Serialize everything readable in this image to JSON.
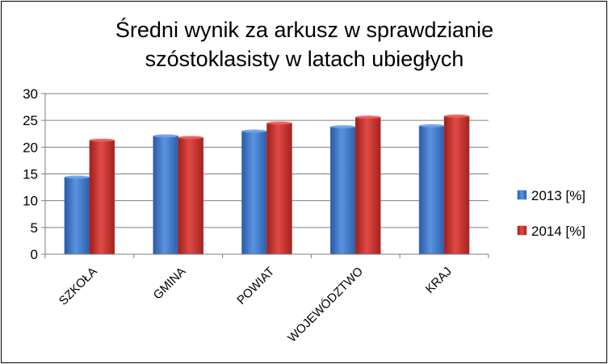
{
  "chart_data": {
    "type": "bar",
    "title_lines": [
      "Średni wynik za arkusz w sprawdzianie",
      "szóstoklasisty w latach ubiegłych"
    ],
    "categories": [
      "SZKOŁA",
      "GMINA",
      "POWIAT",
      "WOJEWÓDZTWO",
      "KRAJ"
    ],
    "series": [
      {
        "name": "2013 [%]",
        "values": [
          14.4,
          22.1,
          23.0,
          23.8,
          24.0
        ],
        "color": "#3f78c9"
      },
      {
        "name": "2014 [%]",
        "values": [
          21.3,
          21.8,
          24.5,
          25.6,
          25.8
        ],
        "color": "#c9302e"
      }
    ],
    "ylim": [
      0,
      30
    ],
    "yticks": [
      0,
      5,
      10,
      15,
      20,
      25,
      30
    ],
    "grid": true,
    "legend_position": "right",
    "xlabel": "",
    "ylabel": ""
  }
}
